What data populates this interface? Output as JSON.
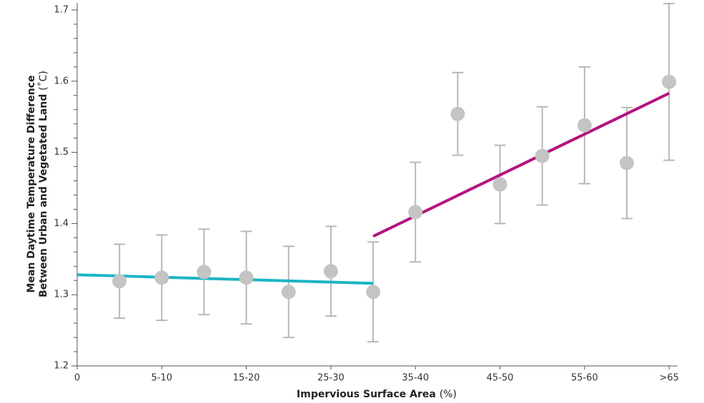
{
  "chart_data": {
    "type": "scatter",
    "xlabel": "Impervious Surface Area",
    "xunit": "(%)",
    "ylabel": [
      "Mean Daytime Temperature Difference",
      "Between Urban and Vegetated Land"
    ],
    "yunit": "(˚C)",
    "x": [
      5,
      10,
      15,
      20,
      25,
      30,
      35,
      40,
      45,
      50,
      55,
      60,
      65,
      70
    ],
    "values": [
      1.319,
      1.324,
      1.332,
      1.324,
      1.304,
      1.333,
      1.304,
      1.416,
      1.554,
      1.455,
      1.495,
      1.538,
      1.485,
      1.599
    ],
    "errors": [
      0.052,
      0.06,
      0.06,
      0.065,
      0.064,
      0.063,
      0.07,
      0.07,
      0.058,
      0.055,
      0.069,
      0.082,
      0.078,
      0.11
    ],
    "color": "#c4c4c4",
    "error_color": "#b8b8b8",
    "trends": [
      {
        "color": "#1bb5c4",
        "x": [
          0,
          35
        ],
        "values": [
          1.328,
          1.316
        ]
      },
      {
        "color": "#b5137e",
        "x": [
          35,
          70
        ],
        "values": [
          1.382,
          1.583
        ]
      }
    ],
    "xlim": [
      0,
      71
    ],
    "ylim": [
      1.2,
      1.71
    ],
    "xticks": [
      {
        "value": 0,
        "label": "0"
      },
      {
        "value": 10,
        "label": "5-10"
      },
      {
        "value": 20,
        "label": "15-20"
      },
      {
        "value": 30,
        "label": "25-30"
      },
      {
        "value": 40,
        "label": "35-40"
      },
      {
        "value": 50,
        "label": "45-50"
      },
      {
        "value": 60,
        "label": "55-60"
      },
      {
        "value": 70,
        "label": ">65"
      }
    ],
    "yticks": [
      1.2,
      1.3,
      1.4,
      1.5,
      1.6,
      1.7
    ],
    "yminorticks": [
      1.22,
      1.24,
      1.26,
      1.28,
      1.32,
      1.34,
      1.36,
      1.38,
      1.42,
      1.44,
      1.46,
      1.48,
      1.52,
      1.54,
      1.56,
      1.58,
      1.62,
      1.64,
      1.66,
      1.68
    ]
  }
}
